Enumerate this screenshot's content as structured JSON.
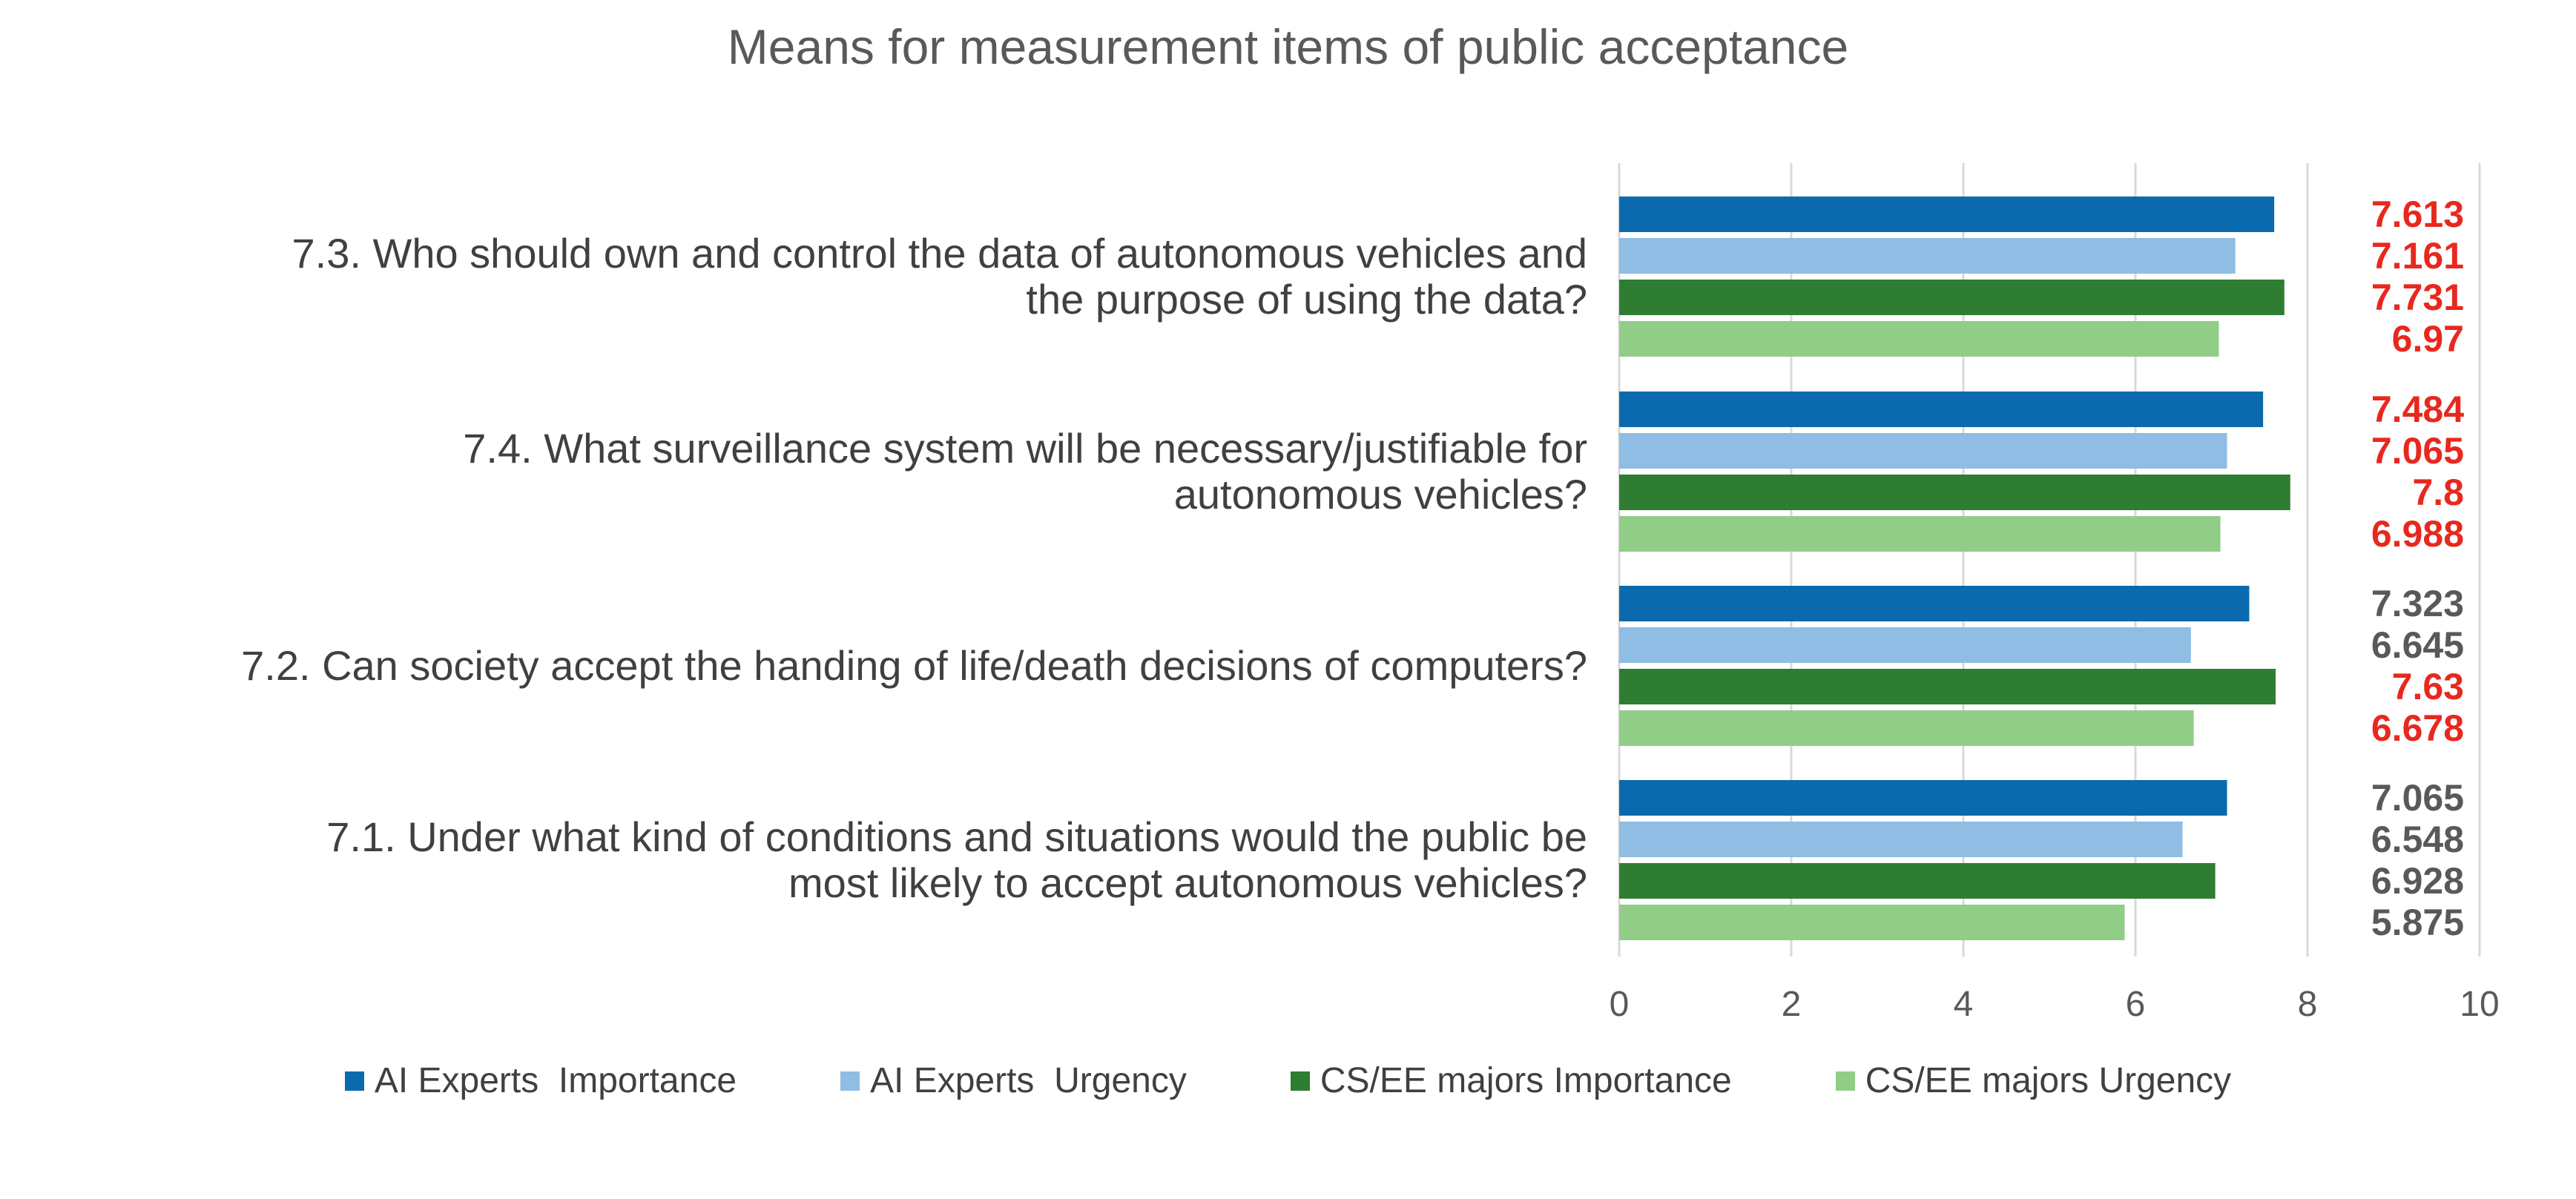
{
  "chart_data": {
    "type": "bar",
    "orientation": "horizontal",
    "title": "Means for measurement items of public acceptance",
    "categories": [
      {
        "lines": [
          "7.3. Who should own and control the data of autonomous vehicles and",
          "the purpose of using the data?"
        ]
      },
      {
        "lines": [
          "7.4. What surveillance system will be necessary/justifiable for",
          "autonomous vehicles?"
        ]
      },
      {
        "lines": [
          "7.2. Can society accept the handing of life/death decisions of computers?"
        ]
      },
      {
        "lines": [
          "7.1. Under what kind of conditions and situations would the public be",
          "most likely to accept autonomous vehicles?"
        ]
      }
    ],
    "series": [
      {
        "name": "AI Experts  Importance",
        "color": "#0a6aad"
      },
      {
        "name": "AI Experts  Urgency",
        "color": "#8fbde3"
      },
      {
        "name": "CS/EE majors Importance",
        "color": "#2f7d32"
      },
      {
        "name": "CS/EE majors Urgency",
        "color": "#92cd87"
      }
    ],
    "values": [
      [
        7.613,
        7.161,
        7.731,
        6.97
      ],
      [
        7.484,
        7.065,
        7.8,
        6.988
      ],
      [
        7.323,
        6.645,
        7.63,
        6.678
      ],
      [
        7.065,
        6.548,
        6.928,
        5.875
      ]
    ],
    "value_labels": [
      [
        "7.613",
        "7.161",
        "7.731",
        "6.97"
      ],
      [
        "7.484",
        "7.065",
        "7.8",
        "6.988"
      ],
      [
        "7.323",
        "6.645",
        "7.63",
        "6.678"
      ],
      [
        "7.065",
        "6.548",
        "6.928",
        "5.875"
      ]
    ],
    "highlighted": [
      [
        true,
        true,
        true,
        true
      ],
      [
        true,
        true,
        true,
        true
      ],
      [
        false,
        false,
        true,
        true
      ],
      [
        false,
        false,
        false,
        false
      ]
    ],
    "highlight_color": "#e8281e",
    "label_color": "#595959",
    "xlim": [
      0,
      10
    ],
    "xticks": [
      "0",
      "2",
      "4",
      "6",
      "8",
      "10"
    ],
    "xlabel": "",
    "ylabel": "",
    "grid": true,
    "legend_position": "bottom"
  }
}
